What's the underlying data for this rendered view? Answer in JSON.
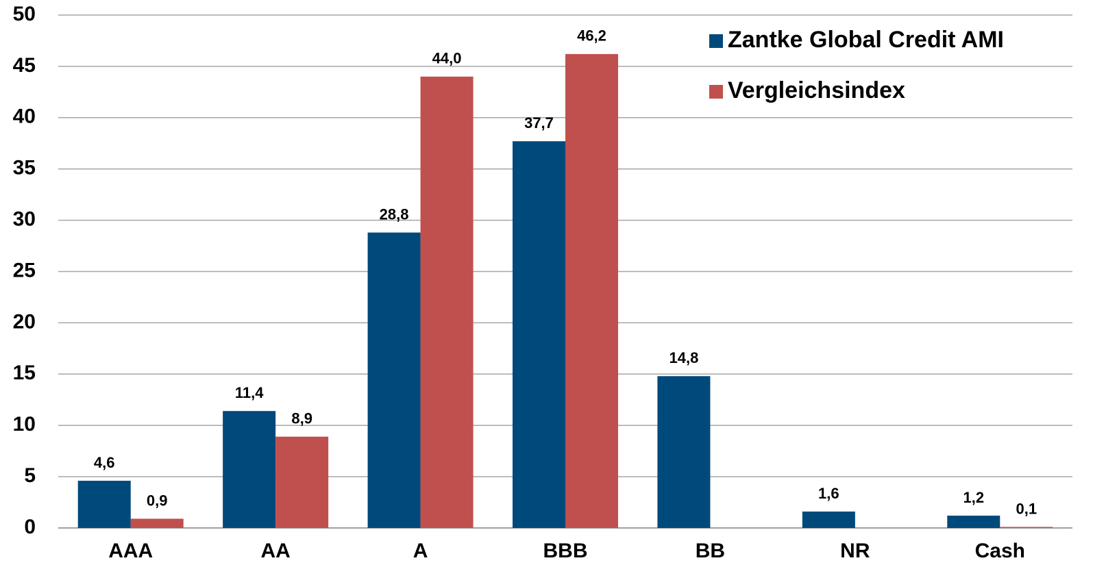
{
  "chart_data": {
    "type": "bar",
    "categories": [
      "AAA",
      "AA",
      "A",
      "BBB",
      "BB",
      "NR",
      "Cash"
    ],
    "series": [
      {
        "name": "Zantke Global Credit AMI",
        "color": "#00497b",
        "values": [
          4.6,
          11.4,
          28.8,
          37.7,
          14.8,
          1.6,
          1.2
        ],
        "value_labels": [
          "4,6",
          "11,4",
          "28,8",
          "37,7",
          "14,8",
          "1,6",
          "1,2"
        ]
      },
      {
        "name": "Vergleichsindex",
        "color": "#c0504d",
        "values": [
          0.9,
          8.9,
          44.0,
          46.2,
          null,
          null,
          0.1
        ],
        "value_labels": [
          "0,9",
          "8,9",
          "44,0",
          "46,2",
          null,
          null,
          "0,1"
        ]
      }
    ],
    "ylim": [
      0,
      50
    ],
    "yticks": [
      0,
      5,
      10,
      15,
      20,
      25,
      30,
      35,
      40,
      45,
      50
    ],
    "grid": true,
    "legend": "top-right"
  }
}
